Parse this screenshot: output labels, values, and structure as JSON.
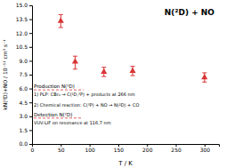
{
  "chart_data": {
    "type": "scatter",
    "title": "N(²D) + NO",
    "xlabel": "T / K",
    "ylabel": "kN(²D)+NO / 10⁻¹¹ cm³ s⁻¹",
    "x": [
      50,
      75,
      125,
      175,
      300
    ],
    "values": [
      13.3,
      8.9,
      7.8,
      7.9,
      7.2
    ],
    "error_up": [
      0.7,
      0.6,
      0.5,
      0.5,
      0.5
    ],
    "error_down": [
      0.7,
      0.8,
      0.5,
      0.5,
      0.5
    ],
    "color": "#d93535",
    "marker": "triangle",
    "xlim": [
      0,
      325
    ],
    "ylim": [
      0,
      15.0
    ],
    "xticks": [
      0,
      50,
      100,
      150,
      200,
      250,
      300
    ],
    "yticks": [
      {
        "value": 0.0,
        "label": "0.0"
      },
      1.5,
      {
        "value": 3.0,
        "label": "3.0"
      },
      4.5,
      {
        "value": 6.0,
        "label": "6.0"
      },
      7.5,
      {
        "value": 9.0,
        "label": "9.0"
      },
      10.5,
      {
        "value": 12.0,
        "label": "12.0"
      },
      13.5,
      {
        "value": 15.0,
        "label": "15.0"
      }
    ],
    "annotations": [
      "Production N(²D)",
      "1) PLP: CBr₄ → C(¹D,³P) + products at 266 nm",
      "2) Chemical reaction: C(³P) + NO → N(²D) + CO",
      "Detection N(²D)",
      "VUV-LIF on resonance at 116.7 nm"
    ]
  }
}
